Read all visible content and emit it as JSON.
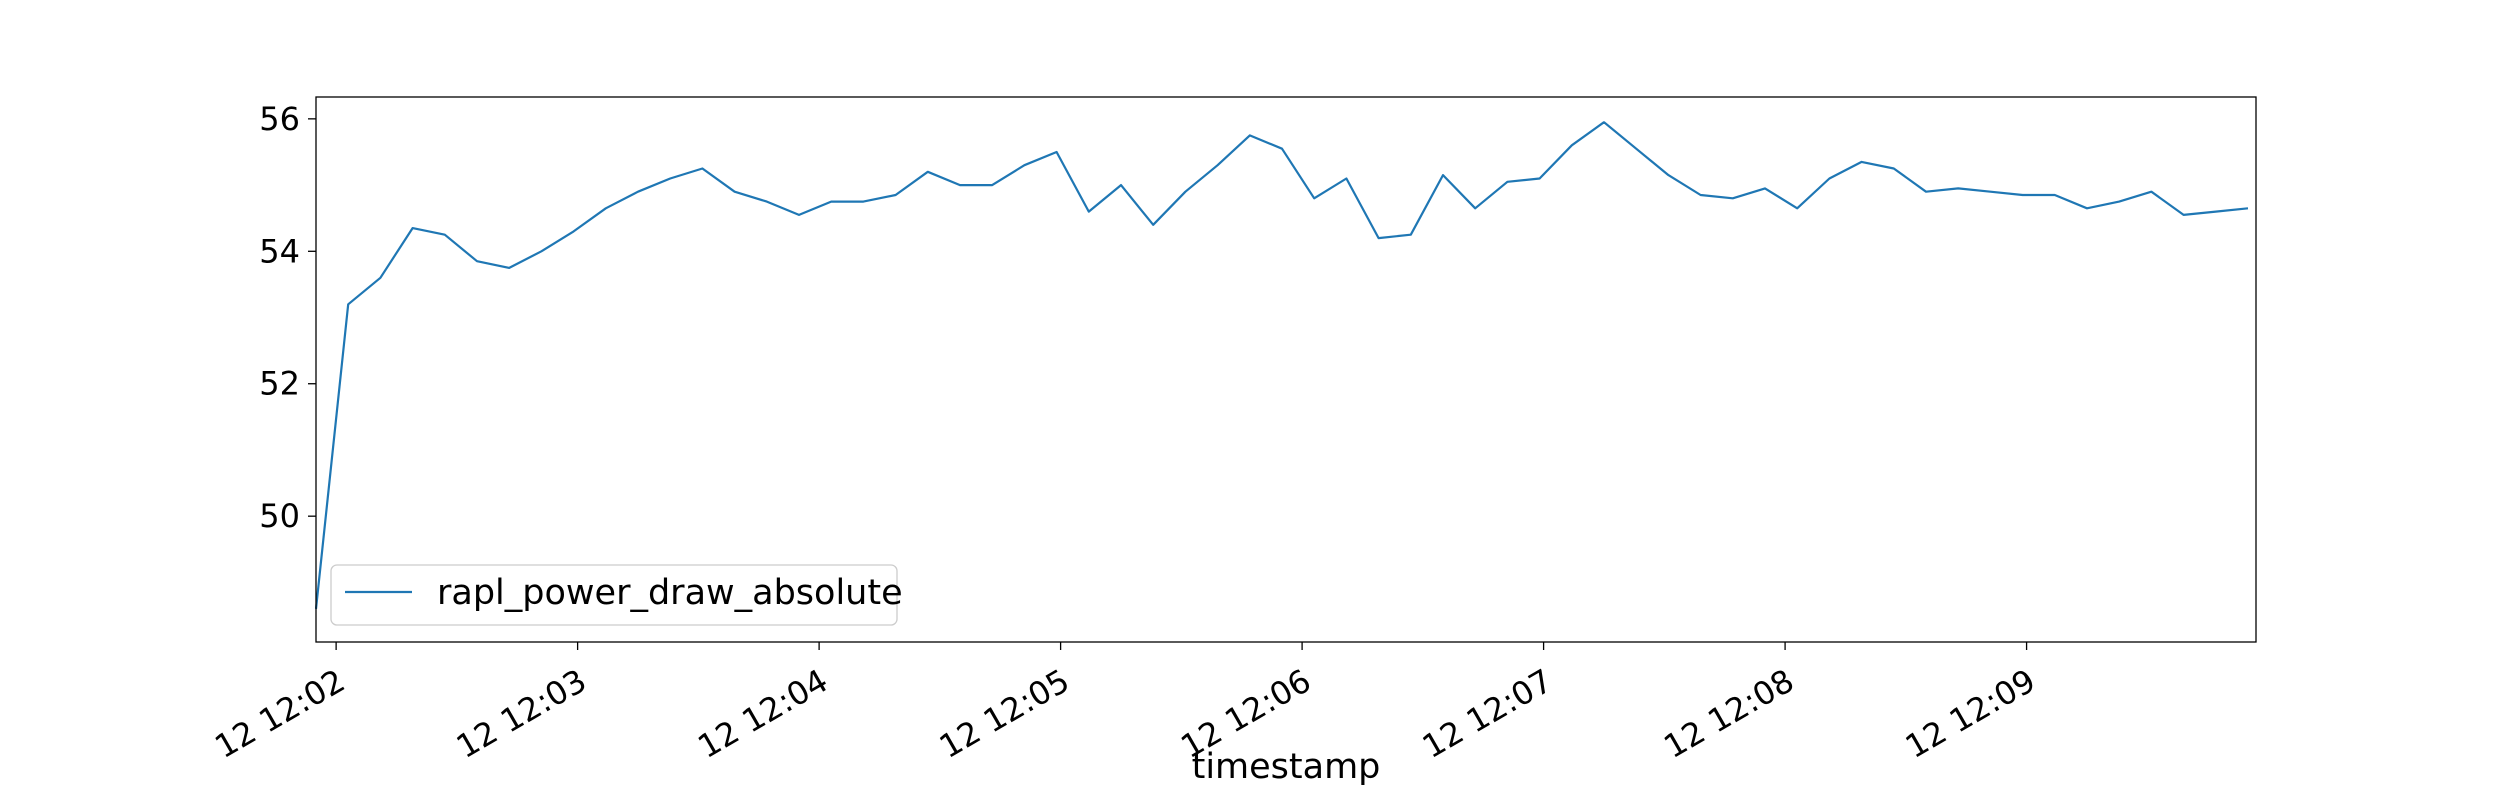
{
  "chart_data": {
    "type": "line",
    "title": "",
    "xlabel": "timestamp",
    "ylabel": "",
    "grid": false,
    "legend_placement": "lower-left",
    "x_ticks": [
      "12 12:02",
      "12 12:03",
      "12 12:04",
      "12 12:05",
      "12 12:06",
      "12 12:07",
      "12 12:08",
      "12 12:09"
    ],
    "y_ticks": [
      50,
      52,
      54,
      56
    ],
    "xlim": [
      "12 12:01:55",
      "12 12:09:57"
    ],
    "ylim": [
      48.1,
      56.33
    ],
    "series": [
      {
        "name": "rapl_power_draw_absolute",
        "color": "#1f77b4",
        "x": [
          "12 12:01:55",
          "12 12:02:03",
          "12 12:02:11",
          "12 12:02:19",
          "12 12:02:27",
          "12 12:02:35",
          "12 12:02:43",
          "12 12:02:51",
          "12 12:02:59",
          "12 12:03:07",
          "12 12:03:15",
          "12 12:03:23",
          "12 12:03:31",
          "12 12:03:39",
          "12 12:03:47",
          "12 12:03:55",
          "12 12:04:03",
          "12 12:04:11",
          "12 12:04:19",
          "12 12:04:27",
          "12 12:04:35",
          "12 12:04:43",
          "12 12:04:51",
          "12 12:04:59",
          "12 12:05:07",
          "12 12:05:15",
          "12 12:05:23",
          "12 12:05:31",
          "12 12:05:39",
          "12 12:05:47",
          "12 12:05:55",
          "12 12:06:03",
          "12 12:06:11",
          "12 12:06:19",
          "12 12:06:27",
          "12 12:06:35",
          "12 12:06:43",
          "12 12:06:51",
          "12 12:06:59",
          "12 12:07:07",
          "12 12:07:15",
          "12 12:07:23",
          "12 12:07:31",
          "12 12:07:39",
          "12 12:07:47",
          "12 12:07:55",
          "12 12:08:03",
          "12 12:08:11",
          "12 12:08:19",
          "12 12:08:27",
          "12 12:08:35",
          "12 12:08:43",
          "12 12:08:51",
          "12 12:08:59",
          "12 12:09:07",
          "12 12:09:15",
          "12 12:09:23",
          "12 12:09:31",
          "12 12:09:39",
          "12 12:09:47",
          "12 12:09:55"
        ],
        "y": [
          48.6,
          53.2,
          53.6,
          54.35,
          54.25,
          53.85,
          53.75,
          54.0,
          54.3,
          54.65,
          54.9,
          55.1,
          55.25,
          54.9,
          54.75,
          54.55,
          54.75,
          54.75,
          54.85,
          55.2,
          55.0,
          55.0,
          55.3,
          55.5,
          54.6,
          55.0,
          54.4,
          54.9,
          55.3,
          55.75,
          55.55,
          54.8,
          55.1,
          54.2,
          54.25,
          55.15,
          54.65,
          55.05,
          55.1,
          55.6,
          55.95,
          55.55,
          55.15,
          54.85,
          54.8,
          54.95,
          54.65,
          55.1,
          55.35,
          55.25,
          54.9,
          54.95,
          54.9,
          54.85,
          54.85,
          54.65,
          54.75,
          54.9,
          54.55,
          54.6,
          54.65
        ]
      }
    ]
  }
}
